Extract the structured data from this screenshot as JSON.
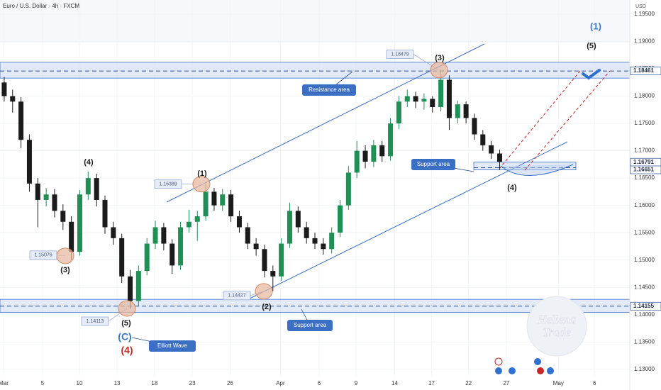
{
  "chart_data": {
    "type": "candlestick",
    "title": "Euro / U.S. Dollar · 4h · FXCM",
    "currency": "USD",
    "xlim": [
      0,
      75
    ],
    "xticks": [
      {
        "value": 0.42,
        "label": "Mar"
      },
      {
        "value": 5.07,
        "label": "5"
      },
      {
        "value": 9.46,
        "label": "10"
      },
      {
        "value": 13.94,
        "label": "13"
      },
      {
        "value": 18.4,
        "label": "18"
      },
      {
        "value": 22.9,
        "label": "23"
      },
      {
        "value": 27.4,
        "label": "26"
      },
      {
        "value": 33.4,
        "label": "Apr"
      },
      {
        "value": 38.0,
        "label": "6"
      },
      {
        "value": 42.4,
        "label": "9"
      },
      {
        "value": 47.0,
        "label": "14"
      },
      {
        "value": 51.4,
        "label": "17"
      },
      {
        "value": 55.8,
        "label": "22"
      },
      {
        "value": 60.3,
        "label": "27"
      },
      {
        "value": 66.5,
        "label": "May"
      },
      {
        "value": 70.8,
        "label": "6"
      }
    ],
    "ylim": [
      1.1288,
      1.1976
    ],
    "yticks": [
      {
        "value": 1.13,
        "label": "1.13000"
      },
      {
        "value": 1.135,
        "label": "1.13500"
      },
      {
        "value": 1.14,
        "label": "1.14000"
      },
      {
        "value": 1.145,
        "label": "1.14500"
      },
      {
        "value": 1.15,
        "label": "1.15000"
      },
      {
        "value": 1.155,
        "label": "1.15500"
      },
      {
        "value": 1.16,
        "label": "1.16000"
      },
      {
        "value": 1.165,
        "label": "1.16500"
      },
      {
        "value": 1.17,
        "label": "1.17000"
      },
      {
        "value": 1.175,
        "label": "1.17500"
      },
      {
        "value": 1.18,
        "label": "1.18000"
      },
      {
        "value": 1.185,
        "label": "1.18500"
      },
      {
        "value": 1.19,
        "label": "1.19000"
      },
      {
        "value": 1.195,
        "label": "1.19500"
      }
    ],
    "up_color": "#1f8f55",
    "down_color": "#1b1b1b",
    "open": [
      1.1825,
      1.18,
      1.179,
      1.172,
      1.164,
      1.161,
      1.162,
      1.159,
      1.157,
      1.1515,
      1.162,
      1.165,
      1.161,
      1.156,
      1.154,
      1.147,
      1.1425,
      1.148,
      1.153,
      1.156,
      1.153,
      1.149,
      1.156,
      1.157,
      1.158,
      1.1625,
      1.16,
      1.162,
      1.158,
      1.156,
      1.153,
      1.152,
      1.148,
      1.147,
      1.153,
      1.159,
      1.156,
      1.154,
      1.153,
      1.152,
      1.155,
      1.16,
      1.166,
      1.17,
      1.168,
      1.171,
      1.169,
      1.175,
      1.179,
      1.18,
      1.179,
      1.1795,
      1.178,
      1.183,
      1.176,
      1.1785,
      1.176,
      1.173,
      1.171,
      1.1695
    ],
    "high": [
      1.1835,
      1.1812,
      1.1798,
      1.173,
      1.165,
      1.1632,
      1.163,
      1.1602,
      1.158,
      1.1628,
      1.1662,
      1.1658,
      1.1618,
      1.157,
      1.1548,
      1.1482,
      1.149,
      1.154,
      1.1572,
      1.1568,
      1.1538,
      1.157,
      1.1592,
      1.159,
      1.1639,
      1.1632,
      1.163,
      1.1628,
      1.159,
      1.1568,
      1.154,
      1.1528,
      1.149,
      1.154,
      1.1605,
      1.1598,
      1.157,
      1.155,
      1.154,
      1.156,
      1.161,
      1.1672,
      1.1718,
      1.171,
      1.172,
      1.1718,
      1.176,
      1.18,
      1.1812,
      1.1808,
      1.1805,
      1.18,
      1.1848,
      1.1838,
      1.1792,
      1.179,
      1.1768,
      1.1738,
      1.1718,
      1.1702
    ],
    "low": [
      1.179,
      1.177,
      1.1705,
      1.1625,
      1.156,
      1.1598,
      1.1578,
      1.1555,
      1.15,
      1.1508,
      1.161,
      1.1598,
      1.1548,
      1.1528,
      1.1458,
      1.1411,
      1.1415,
      1.1472,
      1.152,
      1.1518,
      1.1475,
      1.1482,
      1.155,
      1.1535,
      1.1572,
      1.159,
      1.159,
      1.157,
      1.155,
      1.152,
      1.1508,
      1.1468,
      1.1443,
      1.1462,
      1.1522,
      1.155,
      1.153,
      1.152,
      1.151,
      1.1512,
      1.1542,
      1.1592,
      1.165,
      1.1668,
      1.167,
      1.168,
      1.1682,
      1.174,
      1.178,
      1.1778,
      1.1775,
      1.177,
      1.1772,
      1.1738,
      1.175,
      1.175,
      1.172,
      1.17,
      1.1685,
      1.1665
    ],
    "close": [
      1.18,
      1.179,
      1.172,
      1.164,
      1.161,
      1.162,
      1.159,
      1.157,
      1.1515,
      1.162,
      1.165,
      1.161,
      1.156,
      1.154,
      1.147,
      1.1425,
      1.148,
      1.153,
      1.156,
      1.153,
      1.149,
      1.156,
      1.157,
      1.158,
      1.1625,
      1.16,
      1.162,
      1.158,
      1.156,
      1.153,
      1.152,
      1.148,
      1.147,
      1.153,
      1.159,
      1.156,
      1.154,
      1.153,
      1.152,
      1.155,
      1.16,
      1.166,
      1.17,
      1.168,
      1.171,
      1.169,
      1.175,
      1.179,
      1.18,
      1.179,
      1.1795,
      1.178,
      1.183,
      1.176,
      1.1785,
      1.176,
      1.173,
      1.171,
      1.1695,
      1.168
    ],
    "zones": [
      {
        "from": 1.1833,
        "to": 1.1862,
        "line": 1.18461
      },
      {
        "from": 1.16651,
        "to": 1.16791,
        "line": 1.1669
      },
      {
        "from": 1.1404,
        "to": 1.1428,
        "line": 1.14155
      }
    ],
    "axis_price_labels": [
      1.18461,
      1.16791,
      1.16651,
      1.14155
    ],
    "price_boxes": [
      1.18479,
      1.16389,
      1.15076,
      1.14427,
      1.14113
    ],
    "wave_labels": [
      {
        "text": "(3)",
        "color": "#1b1b1b"
      },
      {
        "text": "(1)",
        "color": "#1b1b1b"
      },
      {
        "text": "(3)",
        "color": "#1b1b1b"
      },
      {
        "text": "(2)",
        "color": "#1b1b1b"
      },
      {
        "text": "(5)",
        "color": "#1b1b1b"
      },
      {
        "text": "(4)",
        "color": "#1b1b1b"
      },
      {
        "text": "(4)",
        "color": "#1b1b1b"
      },
      {
        "text": "(C)",
        "color": "#3a78c8"
      },
      {
        "text": "(4)",
        "color": "#c62828"
      },
      {
        "text": "(1)",
        "color": "#3a78c8"
      },
      {
        "text": "(5)",
        "color": "#1b1b1b"
      }
    ],
    "callouts": [
      "Resistance area",
      "Support area",
      "Support area",
      "Elliott Wave"
    ],
    "watermark": [
      "Hellena",
      "Trade"
    ]
  }
}
